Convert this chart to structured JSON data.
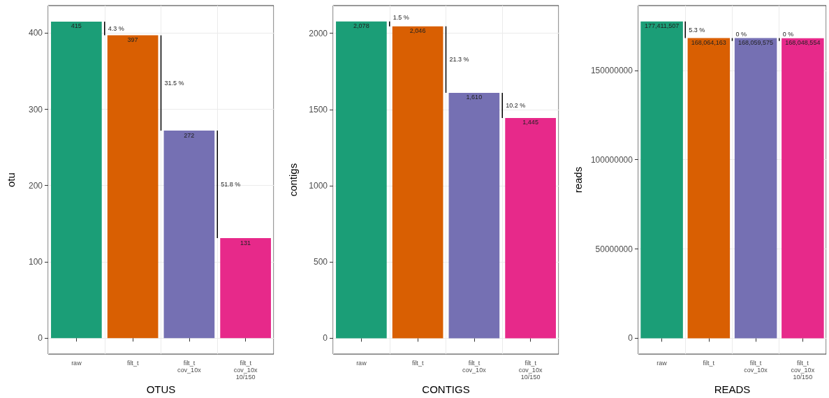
{
  "chart_data": [
    {
      "type": "bar",
      "xlabel": "OTUS",
      "ylabel": "otu",
      "categories": [
        "raw",
        "filt_t",
        "filt_t\ncov_10x",
        "filt_t\ncov_10x\n10/150"
      ],
      "values": [
        415,
        397,
        272,
        131
      ],
      "colors": [
        "#1b9e77",
        "#d95f02",
        "#7570b3",
        "#e7298a"
      ],
      "value_labels": [
        "415",
        "397",
        "272",
        "131"
      ],
      "ylim": [
        -21,
        436
      ],
      "yticks": [
        0,
        100,
        200,
        300,
        400
      ],
      "grid": true,
      "annotations": [
        "4.3 %",
        "31.5 %",
        "51.8 %"
      ]
    },
    {
      "type": "bar",
      "xlabel": "CONTIGS",
      "ylabel": "contigs",
      "categories": [
        "raw",
        "filt_t",
        "filt_t\ncov_10x",
        "filt_t\ncov_10x\n10/150"
      ],
      "values": [
        2078,
        2046,
        1610,
        1445
      ],
      "colors": [
        "#1b9e77",
        "#d95f02",
        "#7570b3",
        "#e7298a"
      ],
      "value_labels": [
        "2,078",
        "2,046",
        "1,610",
        "1,445"
      ],
      "ylim": [
        -104,
        2182
      ],
      "yticks": [
        0,
        500,
        1000,
        1500,
        2000
      ],
      "grid": true,
      "annotations": [
        "1.5 %",
        "21.3 %",
        "10.2 %"
      ]
    },
    {
      "type": "bar",
      "xlabel": "READS",
      "ylabel": "reads",
      "categories": [
        "raw",
        "filt_t",
        "filt_t\ncov_10x",
        "filt_t\ncov_10x\n10/150"
      ],
      "values": [
        177411507,
        168064163,
        168059575,
        168048554
      ],
      "colors": [
        "#1b9e77",
        "#d95f02",
        "#7570b3",
        "#e7298a"
      ],
      "value_labels": [
        "177,411,507",
        "168,064,163",
        "168,059,575",
        "168,048,554"
      ],
      "ylim": [
        -8870575,
        186282082
      ],
      "yticks": [
        0,
        50000000,
        100000000,
        150000000
      ],
      "grid": true,
      "annotations": [
        "5.3 %",
        "0 %",
        "0 %"
      ]
    }
  ]
}
